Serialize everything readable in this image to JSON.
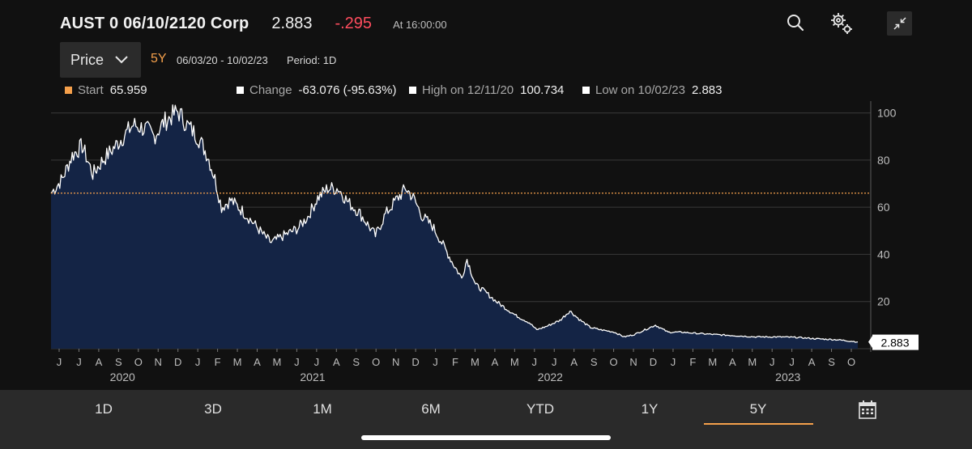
{
  "header": {
    "security": "AUST 0 06/10/2120 Corp",
    "last_price": "2.883",
    "net_change": "-.295",
    "as_of": "At 16:00:00"
  },
  "icons": [
    "search-icon",
    "settings-gears-icon",
    "collapse-arrows-icon",
    "calendar-icon"
  ],
  "controls": {
    "field": "Price",
    "range": "5Y",
    "dates": "06/03/20 - 10/02/23",
    "period": "Period: 1D"
  },
  "stats": {
    "start_label": "Start",
    "start_value": "65.959",
    "change_label": "Change",
    "change_value": "-63.076 (-95.63%)",
    "high_label": "High on 12/11/20",
    "high_value": "100.734",
    "low_label": "Low on 10/02/23",
    "low_value": "2.883"
  },
  "colors": {
    "accent": "#f5a04b",
    "negative": "#ff4d5e",
    "area_fill": "#142445",
    "line": "#ffffff"
  },
  "chart_data": {
    "type": "area",
    "x_range": [
      "2020-06-03",
      "2023-10-02"
    ],
    "ylim": [
      0,
      105
    ],
    "yticks": [
      0,
      20,
      40,
      60,
      80,
      100
    ],
    "reference_line": 65.959,
    "last_value_label": "2.883",
    "month_ticks": [
      "J",
      "J",
      "A",
      "S",
      "O",
      "N",
      "D",
      "J",
      "F",
      "M",
      "A",
      "M",
      "J",
      "J",
      "A",
      "S",
      "O",
      "N",
      "D",
      "J",
      "F",
      "M",
      "A",
      "M",
      "J",
      "J",
      "A",
      "S",
      "O",
      "N",
      "D",
      "J",
      "F",
      "M",
      "A",
      "M",
      "J",
      "J",
      "A",
      "S",
      "O"
    ],
    "year_labels": [
      "2020",
      "2021",
      "2022",
      "2023"
    ],
    "series": [
      {
        "points": [
          [
            "2020-06-03",
            65.959
          ],
          [
            "2020-06-20",
            72
          ],
          [
            "2020-07-05",
            82
          ],
          [
            "2020-07-20",
            86
          ],
          [
            "2020-08-05",
            74
          ],
          [
            "2020-08-20",
            80
          ],
          [
            "2020-09-05",
            85
          ],
          [
            "2020-09-20",
            90
          ],
          [
            "2020-10-05",
            95
          ],
          [
            "2020-10-25",
            93
          ],
          [
            "2020-11-05",
            90
          ],
          [
            "2020-11-20",
            96
          ],
          [
            "2020-12-11",
            100.734
          ],
          [
            "2020-12-25",
            95
          ],
          [
            "2021-01-10",
            90
          ],
          [
            "2021-01-25",
            82
          ],
          [
            "2021-02-05",
            72
          ],
          [
            "2021-02-15",
            60
          ],
          [
            "2021-03-01",
            63
          ],
          [
            "2021-03-20",
            58
          ],
          [
            "2021-04-05",
            53
          ],
          [
            "2021-04-20",
            48
          ],
          [
            "2021-05-01",
            45
          ],
          [
            "2021-05-20",
            48
          ],
          [
            "2021-06-10",
            51
          ],
          [
            "2021-06-25",
            56
          ],
          [
            "2021-07-10",
            64
          ],
          [
            "2021-07-25",
            68
          ],
          [
            "2021-08-10",
            68
          ],
          [
            "2021-08-25",
            62
          ],
          [
            "2021-09-10",
            58
          ],
          [
            "2021-09-25",
            52
          ],
          [
            "2021-10-05",
            48
          ],
          [
            "2021-10-20",
            57
          ],
          [
            "2021-11-05",
            63
          ],
          [
            "2021-11-20",
            68
          ],
          [
            "2021-12-01",
            64
          ],
          [
            "2021-12-15",
            56
          ],
          [
            "2021-12-30",
            52
          ],
          [
            "2022-01-15",
            44
          ],
          [
            "2022-01-30",
            36
          ],
          [
            "2022-02-12",
            30
          ],
          [
            "2022-02-20",
            38
          ],
          [
            "2022-03-05",
            27
          ],
          [
            "2022-03-20",
            24
          ],
          [
            "2022-04-05",
            20
          ],
          [
            "2022-04-20",
            17
          ],
          [
            "2022-05-05",
            14
          ],
          [
            "2022-05-25",
            11
          ],
          [
            "2022-06-05",
            8
          ],
          [
            "2022-06-20",
            9.5
          ],
          [
            "2022-07-10",
            12
          ],
          [
            "2022-07-25",
            16
          ],
          [
            "2022-08-10",
            12
          ],
          [
            "2022-08-25",
            9
          ],
          [
            "2022-09-10",
            8
          ],
          [
            "2022-09-30",
            7
          ],
          [
            "2022-10-15",
            5
          ],
          [
            "2022-10-30",
            6
          ],
          [
            "2022-11-15",
            8
          ],
          [
            "2022-12-01",
            10
          ],
          [
            "2022-12-20",
            7
          ],
          [
            "2023-01-10",
            7
          ],
          [
            "2023-02-01",
            6.5
          ],
          [
            "2023-03-01",
            6
          ],
          [
            "2023-04-01",
            5.5
          ],
          [
            "2023-05-01",
            5
          ],
          [
            "2023-06-01",
            5
          ],
          [
            "2023-07-01",
            4.8
          ],
          [
            "2023-08-01",
            4.2
          ],
          [
            "2023-09-01",
            3.8
          ],
          [
            "2023-10-02",
            2.883
          ]
        ]
      }
    ]
  },
  "tabs": [
    "1D",
    "3D",
    "1M",
    "6M",
    "YTD",
    "1Y",
    "5Y"
  ],
  "active_tab": "5Y"
}
